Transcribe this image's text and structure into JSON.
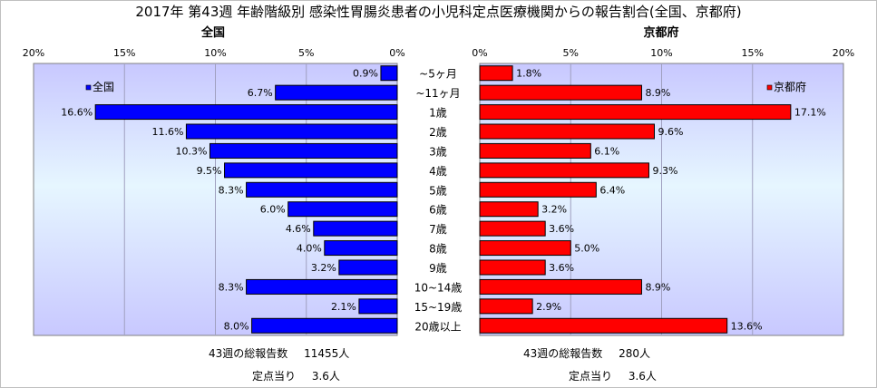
{
  "title": "2017年 第43週 年齢階級別 感染性胃腸炎患者の小児科定点医療機関からの報告割合(全国、京都府)",
  "chart_data": {
    "type": "bar",
    "orientation": "horizontal",
    "categories": [
      "~5ヶ月",
      "~11ヶ月",
      "1歳",
      "2歳",
      "3歳",
      "4歳",
      "5歳",
      "6歳",
      "7歳",
      "8歳",
      "9歳",
      "10~14歳",
      "15~19歳",
      "20歳以上"
    ],
    "xlim": [
      0,
      20
    ],
    "ticks": [
      "0%",
      "5%",
      "10%",
      "15%",
      "20%"
    ],
    "panels": [
      {
        "title": "全国",
        "legend": "全国",
        "color": "#0000ff",
        "direction": "left",
        "values": [
          0.9,
          6.7,
          16.6,
          11.6,
          10.3,
          9.5,
          8.3,
          6.0,
          4.6,
          4.0,
          3.2,
          8.3,
          2.1,
          8.0
        ],
        "labels": [
          "0.9%",
          "6.7%",
          "16.6%",
          "11.6%",
          "10.3%",
          "9.5%",
          "8.3%",
          "6.0%",
          "4.6%",
          "4.0%",
          "3.2%",
          "8.3%",
          "2.1%",
          "8.0%"
        ]
      },
      {
        "title": "京都府",
        "legend": "京都府",
        "color": "#ff0000",
        "direction": "right",
        "values": [
          1.8,
          8.9,
          17.1,
          9.6,
          6.1,
          9.3,
          6.4,
          3.2,
          3.6,
          5.0,
          3.6,
          8.9,
          2.9,
          13.6
        ],
        "labels": [
          "1.8%",
          "8.9%",
          "17.1%",
          "9.6%",
          "6.1%",
          "9.3%",
          "6.4%",
          "3.2%",
          "3.6%",
          "5.0%",
          "3.6%",
          "8.9%",
          "2.9%",
          "13.6%"
        ]
      }
    ]
  },
  "footer": {
    "national": {
      "total_label": "43週の総報告数",
      "total_value": "11455人",
      "per_label": "定点当り",
      "per_value": "3.6人"
    },
    "kyoto": {
      "total_label": "43週の総報告数",
      "total_value": "280人",
      "per_label": "定点当り",
      "per_value": "3.6人"
    }
  }
}
